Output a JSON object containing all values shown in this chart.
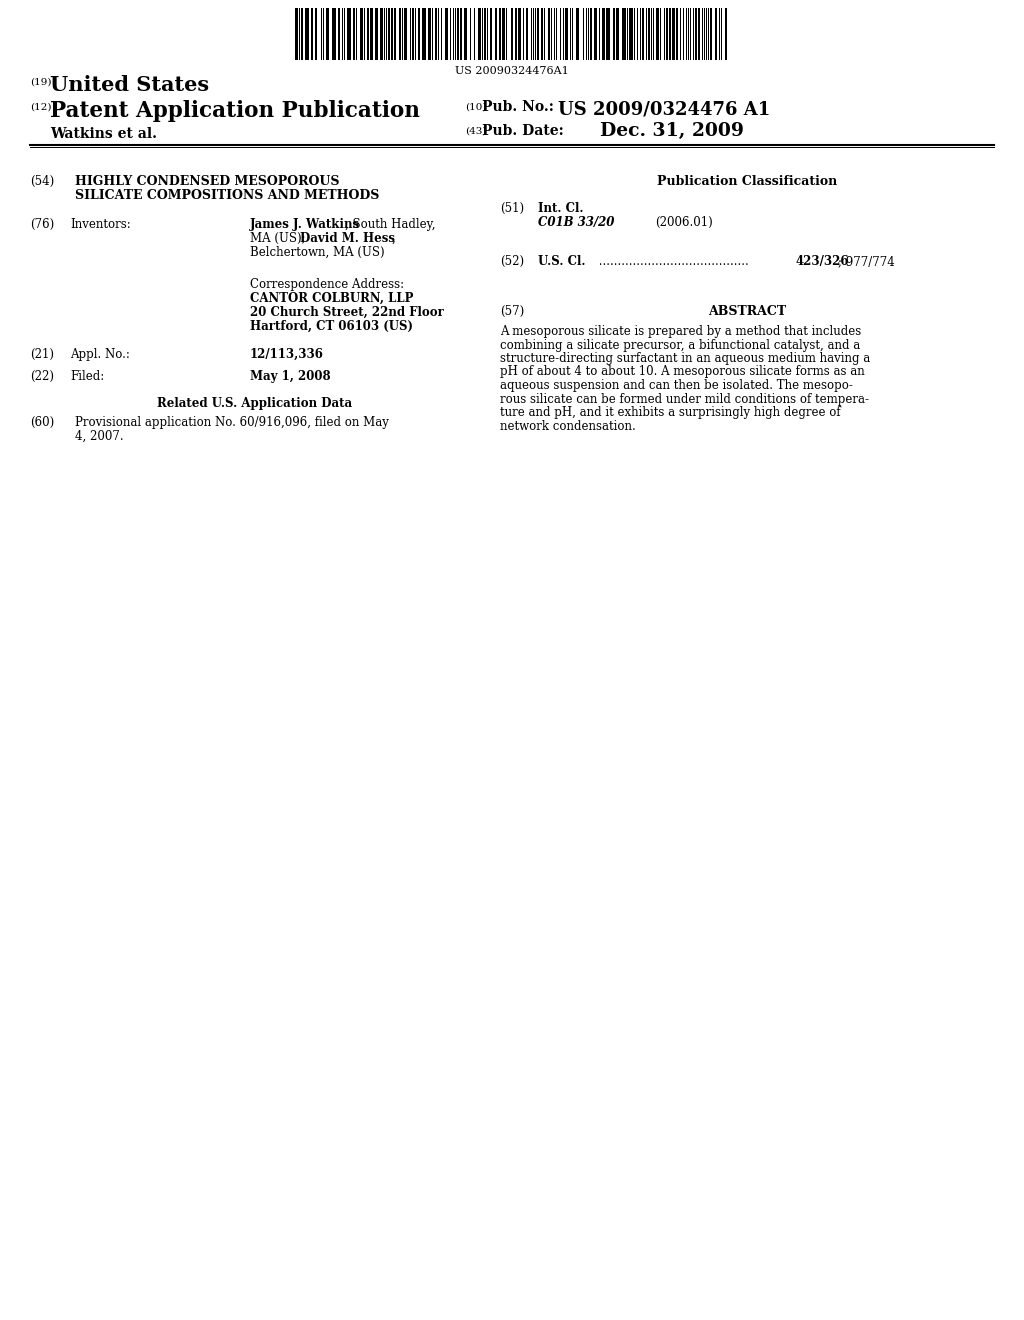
{
  "background_color": "#ffffff",
  "barcode_text": "US 20090324476A1",
  "header_19_num": "(19)",
  "header_19_text": "United States",
  "header_12_num": "(12)",
  "header_12_text": "Patent Application Publication",
  "header_10_num": "(10)",
  "header_10_pub_label": "Pub. No.:",
  "header_10_pub_value": "US 2009/0324476 A1",
  "header_43_num": "(43)",
  "header_43_label": "Pub. Date:",
  "header_43_value": "Dec. 31, 2009",
  "inventors_name": "Watkins et al.",
  "field_54_num": "(54)",
  "field_54_line1": "HIGHLY CONDENSED MESOPOROUS",
  "field_54_line2": "SILICATE COMPOSITIONS AND METHODS",
  "field_76_num": "(76)",
  "field_76_label": "Inventors:",
  "field_76_bold1": "James J. Watkins",
  "field_76_normal1": ", South Hadley,",
  "field_76_normal2a": "MA (US); ",
  "field_76_bold2": "David M. Hess",
  "field_76_normal2b": ",",
  "field_76_normal3": "Belchertown, MA (US)",
  "corr_label": "Correspondence Address:",
  "corr_line1": "CANTOR COLBURN, LLP",
  "corr_line2": "20 Church Street, 22nd Floor",
  "corr_line3": "Hartford, CT 06103 (US)",
  "field_21_num": "(21)",
  "field_21_label": "Appl. No.:",
  "field_21_value": "12/113,336",
  "field_22_num": "(22)",
  "field_22_label": "Filed:",
  "field_22_value": "May 1, 2008",
  "related_header": "Related U.S. Application Data",
  "field_60_num": "(60)",
  "field_60_line1": "Provisional application No. 60/916,096, filed on May",
  "field_60_line2": "4, 2007.",
  "pub_class_header": "Publication Classification",
  "field_51_num": "(51)",
  "field_51_label": "Int. Cl.",
  "field_51_class": "C01B 33/20",
  "field_51_year": "(2006.01)",
  "field_52_num": "(52)",
  "field_52_label": "U.S. Cl.",
  "field_52_dots": " ........................................",
  "field_52_value": "423/326",
  "field_52_value2": "; 977/774",
  "field_57_num": "(57)",
  "field_57_header": "ABSTRACT",
  "abstract_lines": [
    "A mesoporous silicate is prepared by a method that includes",
    "combining a silicate precursor, a bifunctional catalyst, and a",
    "structure-directing surfactant in an aqueous medium having a",
    "pH of about 4 to about 10. A mesoporous silicate forms as an",
    "aqueous suspension and can then be isolated. The mesopo-",
    "rous silicate can be formed under mild conditions of tempera-",
    "ture and pH, and it exhibits a surprisingly high degree of",
    "network condensation."
  ]
}
